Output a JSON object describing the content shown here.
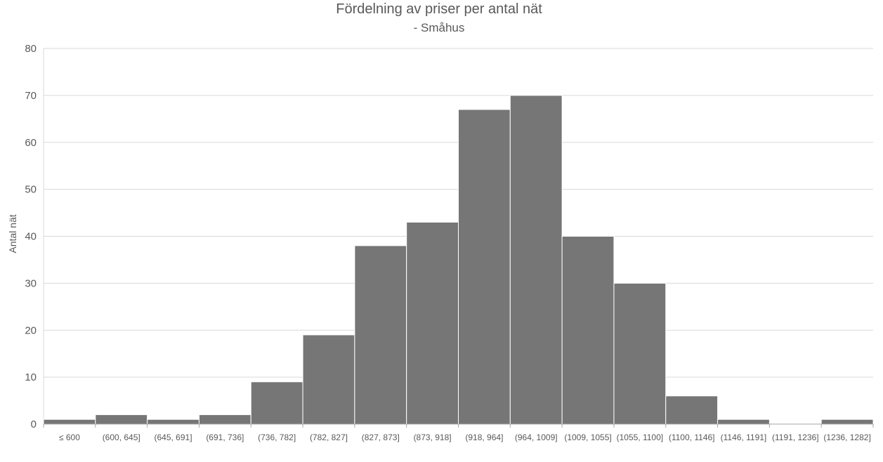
{
  "chart_data": {
    "type": "bar",
    "title": "Fördelning av priser per antal nät",
    "subtitle": "- Småhus",
    "xlabel": "",
    "ylabel": "Antal nät",
    "ylim": [
      0,
      80
    ],
    "yticks": [
      0,
      10,
      20,
      30,
      40,
      50,
      60,
      70,
      80
    ],
    "grid": true,
    "legend": "none",
    "bar_color": "#767676",
    "categories": [
      "≤ 600",
      "(600, 645]",
      "(645, 691]",
      "(691, 736]",
      "(736, 782]",
      "(782, 827]",
      "(827, 873]",
      "(873, 918]",
      "(918, 964]",
      "(964, 1009]",
      "(1009, 1055]",
      "(1055, 1100]",
      "(1100, 1146]",
      "(1146, 1191]",
      "(1191, 1236]",
      "(1236, 1282]"
    ],
    "values": [
      1,
      2,
      1,
      2,
      9,
      19,
      38,
      43,
      67,
      70,
      40,
      30,
      6,
      1,
      0,
      1
    ]
  }
}
